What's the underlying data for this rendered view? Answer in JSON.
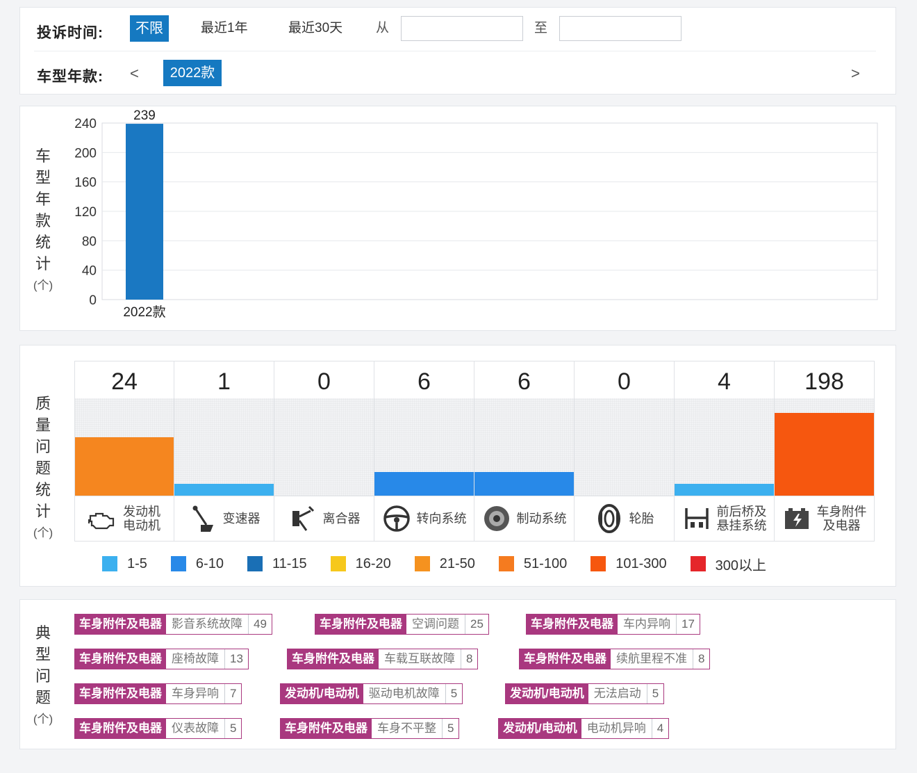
{
  "filter": {
    "time_label": "投诉时间:",
    "time_options": [
      "不限",
      "最近1年",
      "最近30天"
    ],
    "from_label": "从",
    "to_label": "至",
    "from_value": "",
    "to_value": "",
    "model_label": "车型年款:",
    "prev_arrow": "<",
    "next_arrow": ">",
    "selected_year": "2022款"
  },
  "year_chart": {
    "side_label": "车型年款统计",
    "unit": "(个)"
  },
  "chart_data": {
    "type": "bar",
    "categories": [
      "2022款"
    ],
    "values": [
      239
    ],
    "ylim": [
      0,
      240
    ],
    "yticks": [
      0,
      40,
      80,
      120,
      160,
      200,
      240
    ],
    "grid": true,
    "bar_color": "#1a78c2"
  },
  "quality": {
    "side_label": "质量问题统计",
    "unit": "(个)",
    "max_value": 300,
    "items": [
      {
        "name": [
          "发动机",
          "电动机"
        ],
        "icon": "engine-icon",
        "count": "24",
        "value": 24,
        "level": 0.6,
        "color": "#f5861f"
      },
      {
        "name": [
          "变速器"
        ],
        "icon": "gear-shift-icon",
        "count": "1",
        "value": 1,
        "level": 0.12,
        "color": "#3cb0ef"
      },
      {
        "name": [
          "离合器"
        ],
        "icon": "clutch-pedal-icon",
        "count": "0",
        "value": 0,
        "level": 0,
        "color": "#3cb0ef"
      },
      {
        "name": [
          "转向系统"
        ],
        "icon": "steering-wheel-icon",
        "count": "6",
        "value": 6,
        "level": 0.24,
        "color": "#2889e8"
      },
      {
        "name": [
          "制动系统"
        ],
        "icon": "brake-disc-icon",
        "count": "6",
        "value": 6,
        "level": 0.24,
        "color": "#2889e8"
      },
      {
        "name": [
          "轮胎"
        ],
        "icon": "tire-icon",
        "count": "0",
        "value": 0,
        "level": 0,
        "color": "#3cb0ef"
      },
      {
        "name": [
          "前后桥及",
          "悬挂系统"
        ],
        "icon": "suspension-icon",
        "count": "4",
        "value": 4,
        "level": 0.12,
        "color": "#3cb0ef"
      },
      {
        "name": [
          "车身附件",
          "及电器"
        ],
        "icon": "battery-icon",
        "count": "198",
        "value": 198,
        "level": 0.85,
        "color": "#f6570f"
      }
    ],
    "legend": [
      {
        "label": "1-5",
        "color": "#3cb0ef"
      },
      {
        "label": "6-10",
        "color": "#2889e8"
      },
      {
        "label": "11-15",
        "color": "#1a6fb5"
      },
      {
        "label": "16-20",
        "color": "#f6c81c"
      },
      {
        "label": "21-50",
        "color": "#f5921f"
      },
      {
        "label": "51-100",
        "color": "#f57b1f"
      },
      {
        "label": "101-300",
        "color": "#f6570f"
      },
      {
        "label": "300以上",
        "color": "#e5262a"
      }
    ]
  },
  "typical": {
    "side_label": "典型问题",
    "unit": "(个)",
    "accent": "#a9387f",
    "rows": [
      [
        {
          "category": "车身附件及电器",
          "issue": "影音系统故障",
          "count": "49"
        },
        {
          "category": "车身附件及电器",
          "issue": "空调问题",
          "count": "25"
        },
        {
          "category": "车身附件及电器",
          "issue": "车内异响",
          "count": "17"
        }
      ],
      [
        {
          "category": "车身附件及电器",
          "issue": "座椅故障",
          "count": "13"
        },
        {
          "category": "车身附件及电器",
          "issue": "车载互联故障",
          "count": "8"
        },
        {
          "category": "车身附件及电器",
          "issue": "续航里程不准",
          "count": "8"
        }
      ],
      [
        {
          "category": "车身附件及电器",
          "issue": "车身异响",
          "count": "7"
        },
        {
          "category": "发动机/电动机",
          "issue": "驱动电机故障",
          "count": "5"
        },
        {
          "category": "发动机/电动机",
          "issue": "无法启动",
          "count": "5"
        }
      ],
      [
        {
          "category": "车身附件及电器",
          "issue": "仪表故障",
          "count": "5"
        },
        {
          "category": "车身附件及电器",
          "issue": "车身不平整",
          "count": "5"
        },
        {
          "category": "发动机/电动机",
          "issue": "电动机异响",
          "count": "4"
        }
      ]
    ]
  }
}
